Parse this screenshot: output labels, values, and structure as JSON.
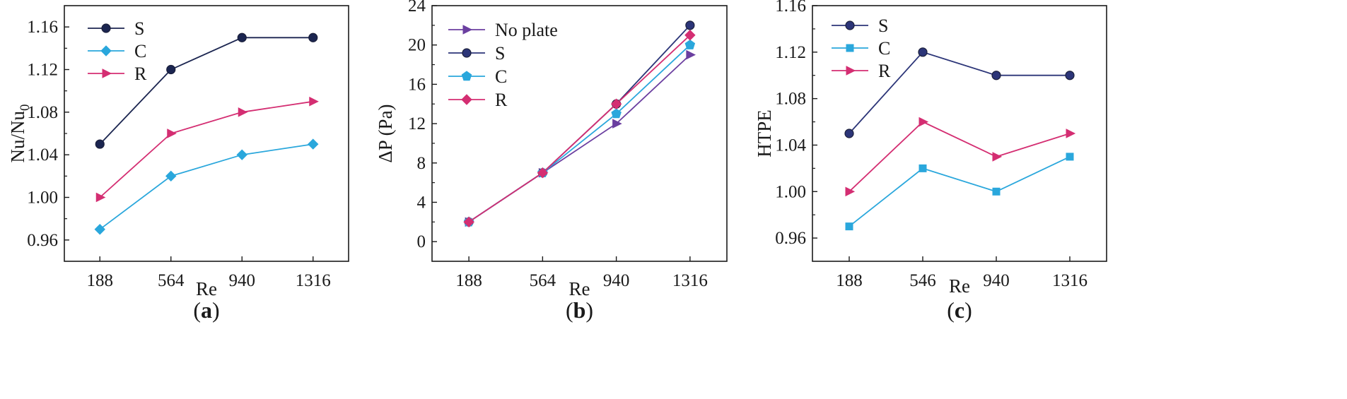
{
  "chart_data": [
    {
      "type": "line",
      "panel_label": "a",
      "categories": [
        "188",
        "564",
        "940",
        "1316"
      ],
      "xlabel": "Re",
      "ylabel": "Nu/Nu",
      "ylabel_subscript": "0",
      "ylim": [
        0.94,
        1.18
      ],
      "yticks": [
        "0.96",
        "1.00",
        "1.04",
        "1.08",
        "1.12",
        "1.16"
      ],
      "legend_position": "top-left",
      "series": [
        {
          "name": "S",
          "values": [
            1.05,
            1.12,
            1.15,
            1.15
          ],
          "color": "#1b2550",
          "marker": "circle"
        },
        {
          "name": "C",
          "values": [
            0.97,
            1.02,
            1.04,
            1.05
          ],
          "color": "#2aa7dc",
          "marker": "diamond"
        },
        {
          "name": "R",
          "values": [
            1.0,
            1.06,
            1.08,
            1.09
          ],
          "color": "#d42e72",
          "marker": "triangle-right"
        }
      ]
    },
    {
      "type": "line",
      "panel_label": "b",
      "categories": [
        "188",
        "564",
        "940",
        "1316"
      ],
      "xlabel": "Re",
      "ylabel": "ΔP (Pa)",
      "ylim": [
        -2,
        24
      ],
      "yticks": [
        "0",
        "4",
        "8",
        "12",
        "16",
        "20",
        "24"
      ],
      "legend_position": "top-left",
      "series": [
        {
          "name": "No plate",
          "values": [
            2,
            7,
            12,
            19
          ],
          "color": "#6b3fa0",
          "marker": "triangle-right"
        },
        {
          "name": "S",
          "values": [
            2,
            7,
            14,
            22
          ],
          "color": "#2c3578",
          "marker": "circle"
        },
        {
          "name": "C",
          "values": [
            2,
            7,
            13,
            20
          ],
          "color": "#2aa7dc",
          "marker": "pentagon"
        },
        {
          "name": "R",
          "values": [
            2,
            7,
            14,
            21
          ],
          "color": "#d42e72",
          "marker": "diamond"
        }
      ]
    },
    {
      "type": "line",
      "panel_label": "c",
      "categories": [
        "188",
        "546",
        "940",
        "1316"
      ],
      "xlabel": "Re",
      "ylabel": "HTPE",
      "ylim": [
        0.94,
        1.16
      ],
      "yticks": [
        "0.96",
        "1.00",
        "1.04",
        "1.08",
        "1.12",
        "1.16"
      ],
      "legend_position": "top-left",
      "series": [
        {
          "name": "S",
          "values": [
            1.05,
            1.12,
            1.1,
            1.1
          ],
          "color": "#2c3578",
          "marker": "circle"
        },
        {
          "name": "C",
          "values": [
            0.97,
            1.02,
            1.0,
            1.03
          ],
          "color": "#2aa7dc",
          "marker": "square"
        },
        {
          "name": "R",
          "values": [
            1.0,
            1.06,
            1.03,
            1.05
          ],
          "color": "#d42e72",
          "marker": "triangle-right"
        }
      ]
    }
  ]
}
